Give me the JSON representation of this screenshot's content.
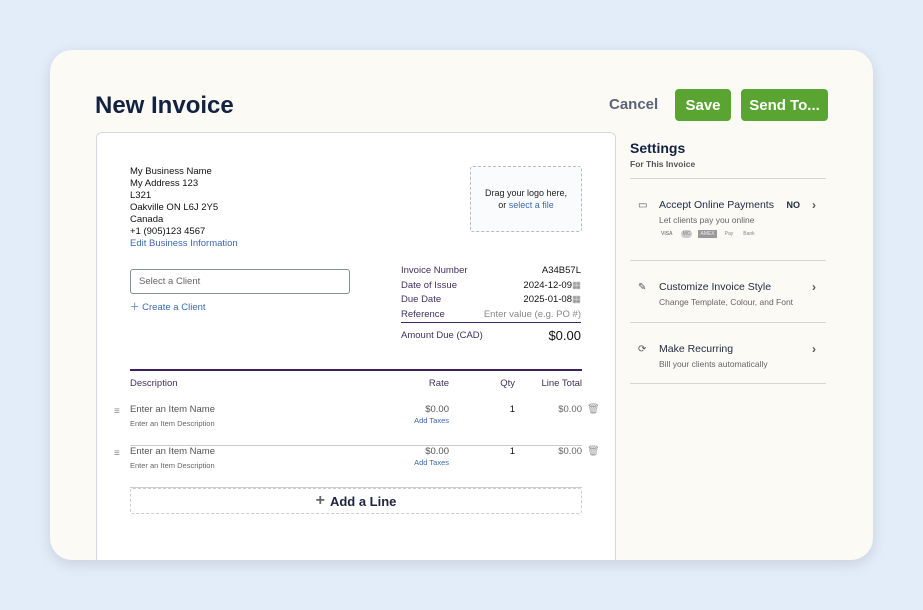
{
  "header": {
    "title": "New Invoice",
    "cancel": "Cancel",
    "save": "Save",
    "send": "Send To..."
  },
  "business": {
    "lines": [
      "My Business Name",
      "My Address 123",
      "L321",
      "Oakville ON  L6J 2Y5",
      "Canada",
      "+1 (905)123 4567"
    ],
    "edit_link": "Edit Business Information"
  },
  "logo": {
    "text": "Drag your logo here,",
    "or": "or",
    "link": "select a file"
  },
  "client": {
    "placeholder": "Select a Client",
    "create": "Create a Client"
  },
  "meta": {
    "invoice_number_label": "Invoice Number",
    "invoice_number": "A34B57L",
    "issue_label": "Date of Issue",
    "issue": "2024-12-09",
    "due_label": "Due Date",
    "due": "2025-01-08",
    "reference_label": "Reference",
    "reference_placeholder": "Enter value (e.g. PO #)",
    "amount_label": "Amount Due (CAD)",
    "amount": "$0.00"
  },
  "table": {
    "headers": {
      "description": "Description",
      "rate": "Rate",
      "qty": "Qty",
      "total": "Line Total"
    },
    "lines": [
      {
        "name": "Enter an Item Name",
        "desc": "Enter an Item Description",
        "rate": "$0.00",
        "taxes": "Add Taxes",
        "qty": "1",
        "total": "$0.00"
      },
      {
        "name": "Enter an Item Name",
        "desc": "Enter an Item Description",
        "rate": "$0.00",
        "taxes": "Add Taxes",
        "qty": "1",
        "total": "$0.00"
      }
    ],
    "add_line": "Add a Line"
  },
  "settings": {
    "title": "Settings",
    "subtitle": "For This Invoice",
    "items": [
      {
        "title": "Accept Online Payments",
        "desc": "Let clients pay you online",
        "status": "NO",
        "cards": [
          "VISA",
          "MC",
          "AMEX",
          "Pay",
          "Bank"
        ]
      },
      {
        "title": "Customize Invoice Style",
        "desc": "Change Template, Colour, and Font"
      },
      {
        "title": "Make Recurring",
        "desc": "Bill your clients automatically"
      }
    ]
  },
  "colors": {
    "accent": "#5aa532",
    "purple": "#3e1f60"
  }
}
